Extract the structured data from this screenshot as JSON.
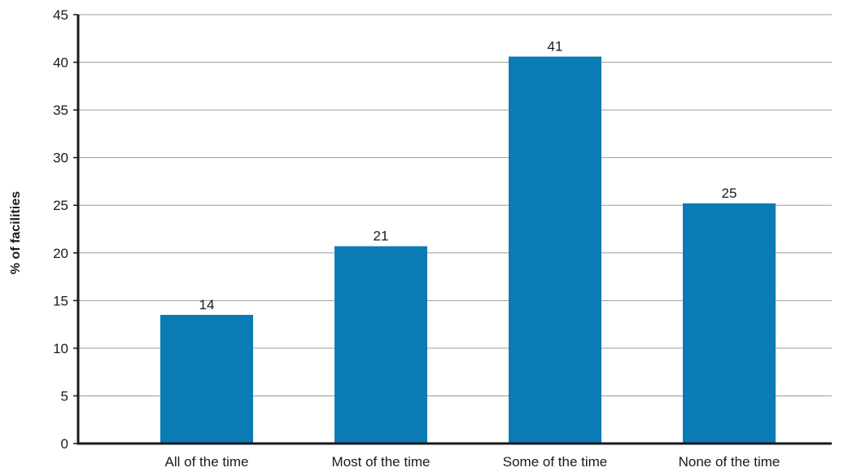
{
  "chart_data": {
    "type": "bar",
    "categories": [
      "All of the time",
      "Most of the time",
      "Some of the time",
      "None of the time"
    ],
    "values": [
      13.5,
      20.7,
      40.6,
      25.2
    ],
    "value_labels": [
      "14",
      "21",
      "41",
      "25"
    ],
    "title": "",
    "xlabel": "",
    "ylabel": "% of facilities",
    "ylim": [
      0,
      45
    ],
    "yticks": [
      0,
      5,
      10,
      15,
      20,
      25,
      30,
      35,
      40,
      45
    ],
    "grid": true,
    "legend": "none",
    "bar_color": "#0a7bb5"
  }
}
